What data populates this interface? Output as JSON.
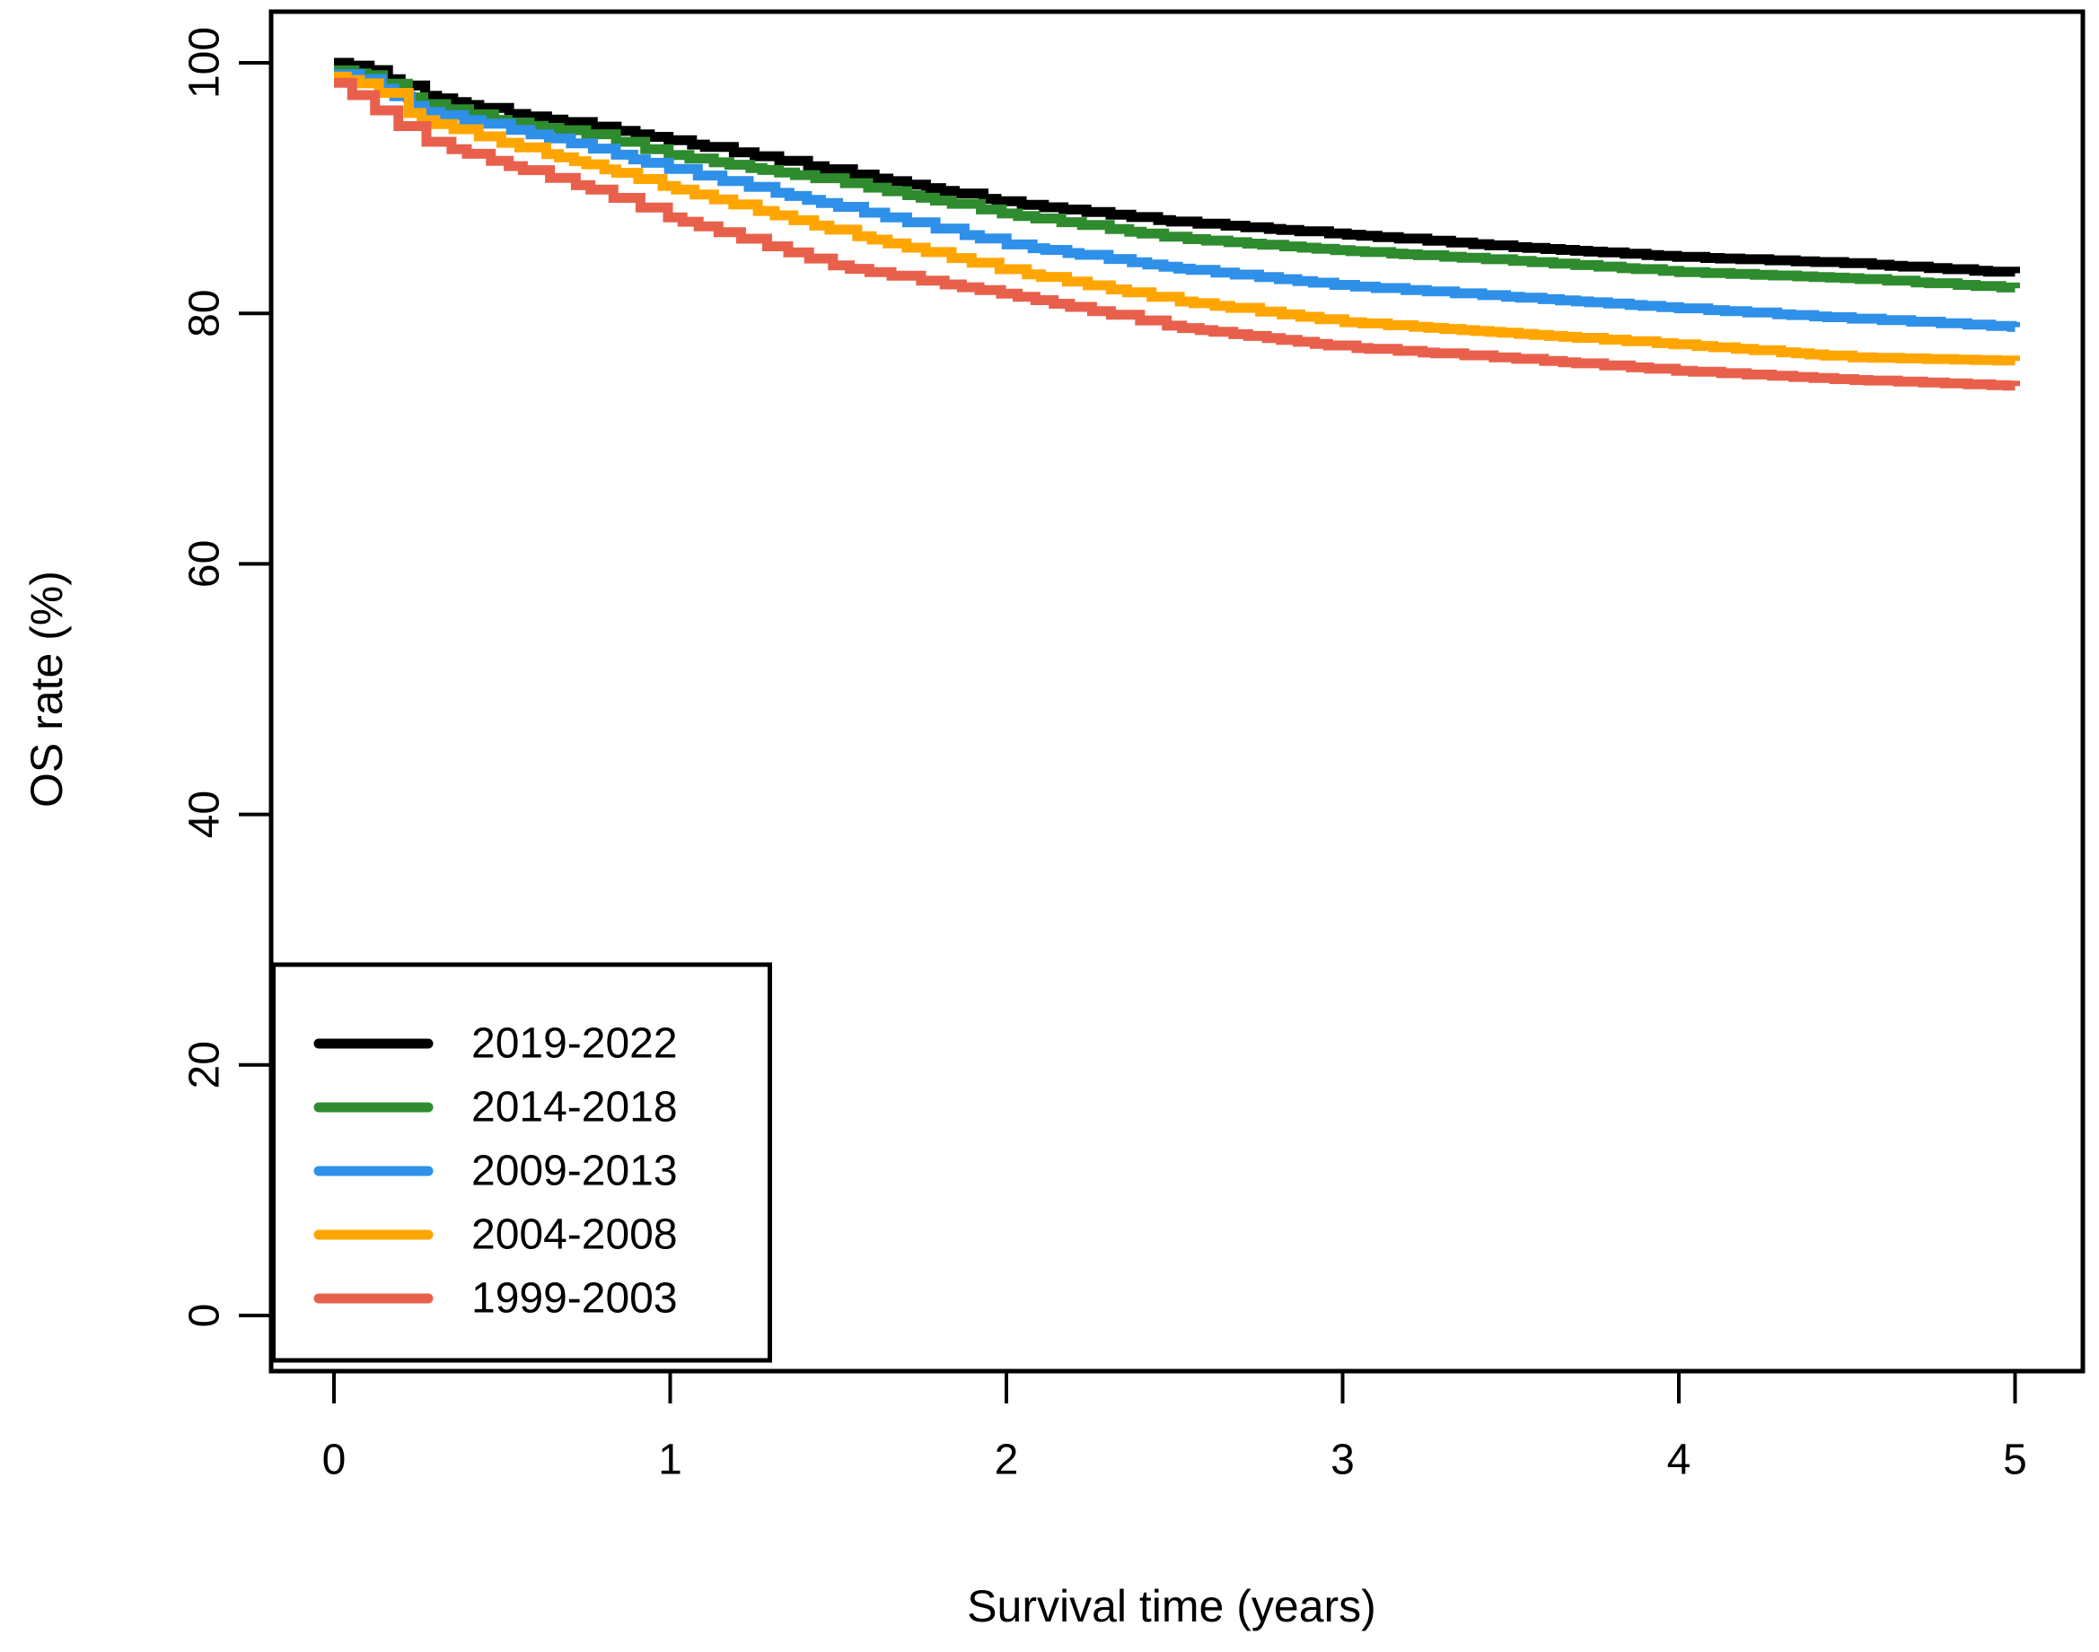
{
  "chart_data": {
    "type": "line",
    "subtype": "kaplan-meier-step",
    "title": "",
    "xlabel": "Survival time (years)",
    "ylabel": "OS rate (%)",
    "xlim": [
      0,
      5
    ],
    "ylim": [
      0,
      100
    ],
    "x_ticks": [
      "0",
      "1",
      "2",
      "3",
      "4",
      "5"
    ],
    "y_ticks": [
      "0",
      "20",
      "40",
      "60",
      "80",
      "100"
    ],
    "grid": false,
    "legend_position": "bottom-left",
    "frame_color": "#000000",
    "sample_times": [
      0,
      0.1,
      0.25,
      0.5,
      0.75,
      1,
      1.5,
      2,
      2.5,
      3,
      3.5,
      4,
      4.5,
      5
    ],
    "series": [
      {
        "name": "2019-2022",
        "color": "#000000",
        "values": [
          100,
          99.5,
          97.5,
          96.0,
          95.0,
          93.8,
          91.3,
          88.8,
          87.3,
          86.3,
          85.3,
          84.5,
          84.0,
          83.2
        ]
      },
      {
        "name": "2014-2018",
        "color": "#2e8b2e",
        "values": [
          99.4,
          99.0,
          96.8,
          95.3,
          94.3,
          92.6,
          90.5,
          87.9,
          86.0,
          85.0,
          84.2,
          83.3,
          82.8,
          82.0
        ]
      },
      {
        "name": "2009-2013",
        "color": "#2e90e8",
        "values": [
          99.1,
          98.6,
          96.2,
          94.8,
          93.3,
          91.5,
          88.5,
          85.5,
          83.6,
          82.2,
          81.3,
          80.4,
          79.6,
          78.9
        ]
      },
      {
        "name": "2004-2008",
        "color": "#ffa500",
        "values": [
          98.9,
          98.2,
          95.5,
          93.6,
          91.9,
          90.0,
          86.5,
          83.4,
          81.0,
          79.3,
          78.4,
          77.5,
          76.5,
          76.2
        ]
      },
      {
        "name": "1999-2003",
        "color": "#e8604c",
        "values": [
          98.4,
          96.6,
          93.9,
          91.9,
          90.0,
          87.6,
          83.7,
          81.5,
          78.9,
          77.3,
          76.4,
          75.4,
          74.7,
          74.2
        ]
      }
    ]
  }
}
